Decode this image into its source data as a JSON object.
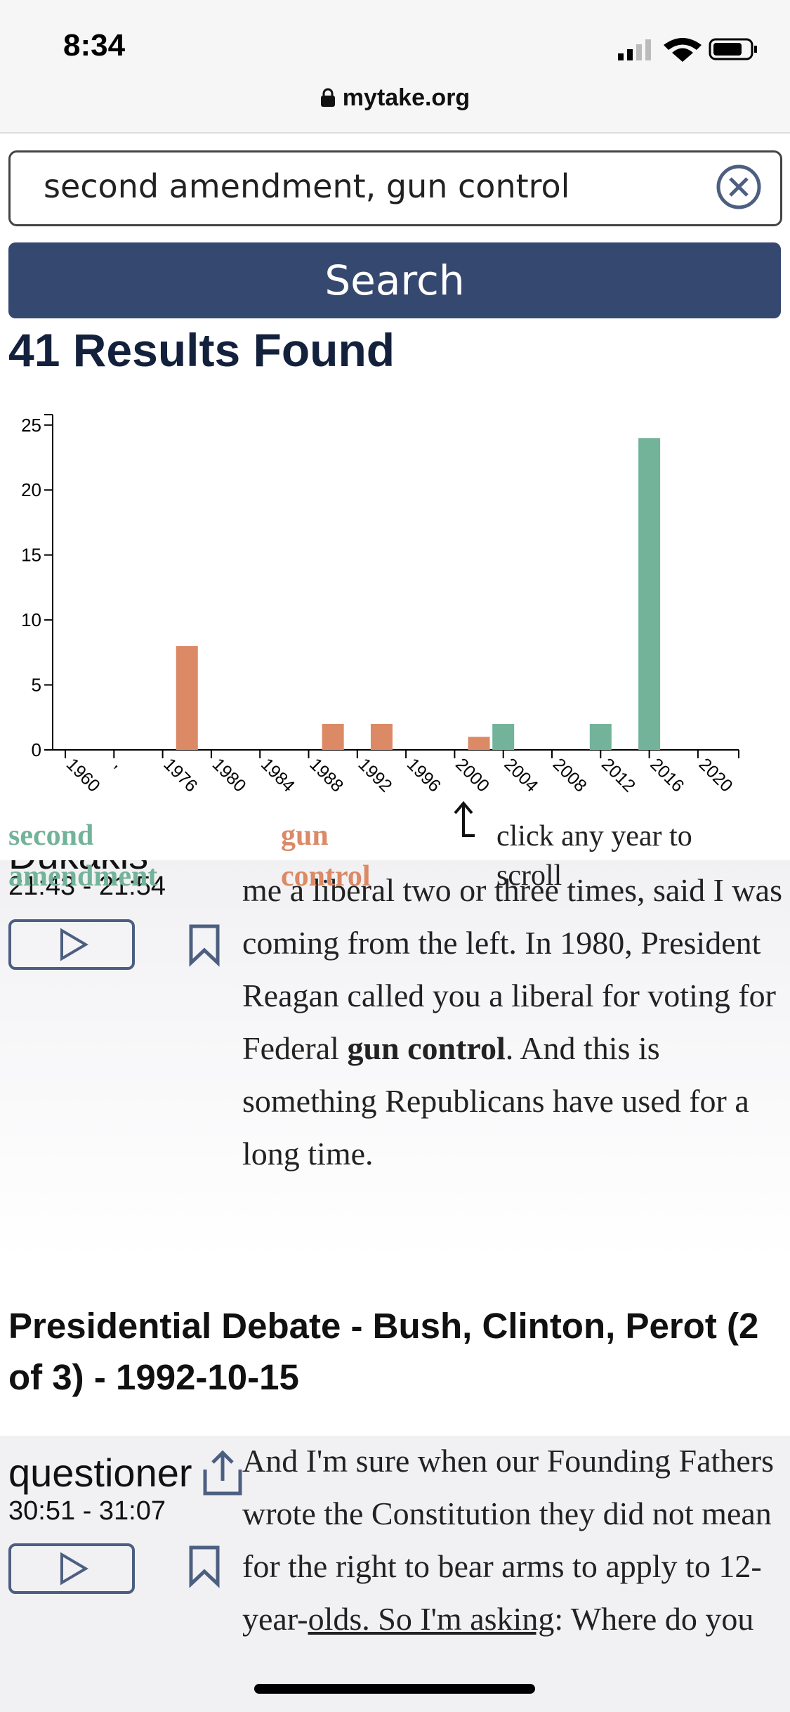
{
  "status_bar": {
    "time": "8:34"
  },
  "browser": {
    "url": "mytake.org"
  },
  "search": {
    "query": "second amendment, gun control",
    "button": "Search"
  },
  "results_heading": "41 Results Found",
  "chart_data": {
    "type": "bar",
    "categories": [
      "1960",
      ",",
      "1976",
      "1980",
      "1984",
      "1988",
      "1992",
      "1996",
      "2000",
      "2004",
      "2008",
      "2012",
      "2016",
      "2020"
    ],
    "series": [
      {
        "name": "second amendment",
        "color": "#72b39a",
        "values": [
          0,
          0,
          0,
          0,
          0,
          0,
          0,
          0,
          0,
          2,
          0,
          2,
          24,
          0
        ]
      },
      {
        "name": "gun control",
        "color": "#dc8965",
        "values": [
          0,
          0,
          8,
          0,
          0,
          2,
          2,
          0,
          1,
          0,
          0,
          0,
          0,
          0
        ]
      }
    ],
    "ylim": [
      0,
      25.8
    ],
    "yticks": [
      0,
      5,
      10,
      15,
      20,
      25
    ],
    "hint": "click any year to scroll"
  },
  "results": [
    {
      "speaker": "Dukakis",
      "time": "21:43 - 21:54",
      "text_before": "me a liberal two or three times, said I was coming from the left. In 1980, President Reagan called you a liberal for voting for Federal ",
      "highlight": "gun control",
      "text_after": ". And this is something Republicans have used for a long time."
    },
    {
      "heading": "Presidential Debate - Bush, Clinton, Perot (2 of 3) - 1992-10-15",
      "speaker": "questioner",
      "time": "30:51 - 31:07",
      "text_before": "And I'm sure when our Founding Fathers wrote the Constitution they did not mean for the right to bear arms to apply to 12-year-",
      "highlight": "olds. So I'm asking",
      "text_after": ": Where do you"
    }
  ]
}
